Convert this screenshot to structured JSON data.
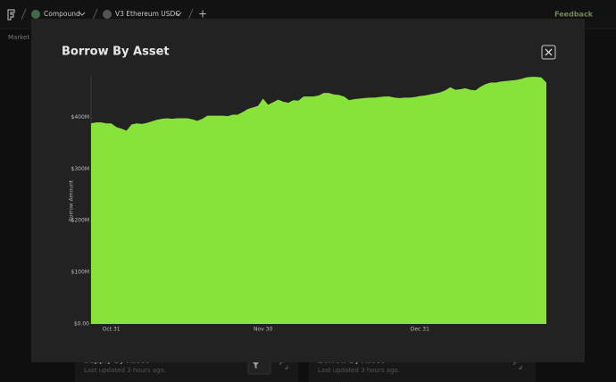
{
  "header": {
    "breadcrumbs": [
      "Compound",
      "V3 Ethereum USDC"
    ],
    "add": "+",
    "feedback": "Feedback"
  },
  "nav": {
    "market": "Market"
  },
  "background_cards": [
    {
      "title": "Supply By Asset",
      "updated": "Last updated 3 hours ago."
    },
    {
      "title": "Borrow By Asset",
      "updated": "Last updated 3 hours ago."
    }
  ],
  "chart_data": {
    "type": "area",
    "title": "Borrow By Asset",
    "y_label": "Borrow Amount",
    "color": "#89e23a",
    "categories": [
      null,
      null,
      null,
      null,
      "Oct 31",
      null,
      null,
      null,
      null,
      null,
      null,
      null,
      null,
      null,
      null,
      null,
      null,
      null,
      null,
      null,
      null,
      null,
      null,
      null,
      null,
      null,
      null,
      null,
      null,
      null,
      null,
      null,
      null,
      null,
      "Nov 30",
      null,
      null,
      null,
      null,
      null,
      null,
      null,
      null,
      null,
      null,
      null,
      null,
      null,
      null,
      null,
      null,
      null,
      null,
      null,
      null,
      null,
      null,
      null,
      null,
      null,
      null,
      null,
      null,
      null,
      null,
      "Dec 31",
      null,
      null,
      null,
      null,
      null,
      null,
      null,
      null,
      null,
      null,
      null,
      null,
      null,
      null,
      null,
      null,
      null,
      null,
      null,
      null,
      null,
      null,
      null,
      null,
      null
    ],
    "values": [
      388,
      390,
      390,
      388,
      388,
      381,
      378,
      374,
      386,
      388,
      387,
      389,
      392,
      395,
      397,
      398,
      397,
      398,
      398,
      398,
      396,
      393,
      397,
      403,
      403,
      403,
      403,
      402,
      405,
      405,
      410,
      416,
      419,
      422,
      436,
      424,
      429,
      434,
      430,
      428,
      433,
      432,
      440,
      440,
      440,
      442,
      447,
      447,
      444,
      443,
      440,
      433,
      435,
      436,
      437,
      438,
      438,
      439,
      440,
      440,
      438,
      437,
      438,
      438,
      439,
      441,
      442,
      444,
      446,
      448,
      452,
      458,
      453,
      454,
      456,
      453,
      452,
      459,
      464,
      467,
      467,
      469,
      470,
      471,
      472,
      474,
      477,
      478,
      478,
      477,
      467
    ],
    "ylim": [
      0,
      480
    ],
    "yticks": [
      {
        "value": 0,
        "label": "$0.00"
      },
      {
        "value": 100,
        "label": "$100M"
      },
      {
        "value": 200,
        "label": "$200M"
      },
      {
        "value": 300,
        "label": "$300M"
      },
      {
        "value": 400,
        "label": "$400M"
      }
    ]
  }
}
